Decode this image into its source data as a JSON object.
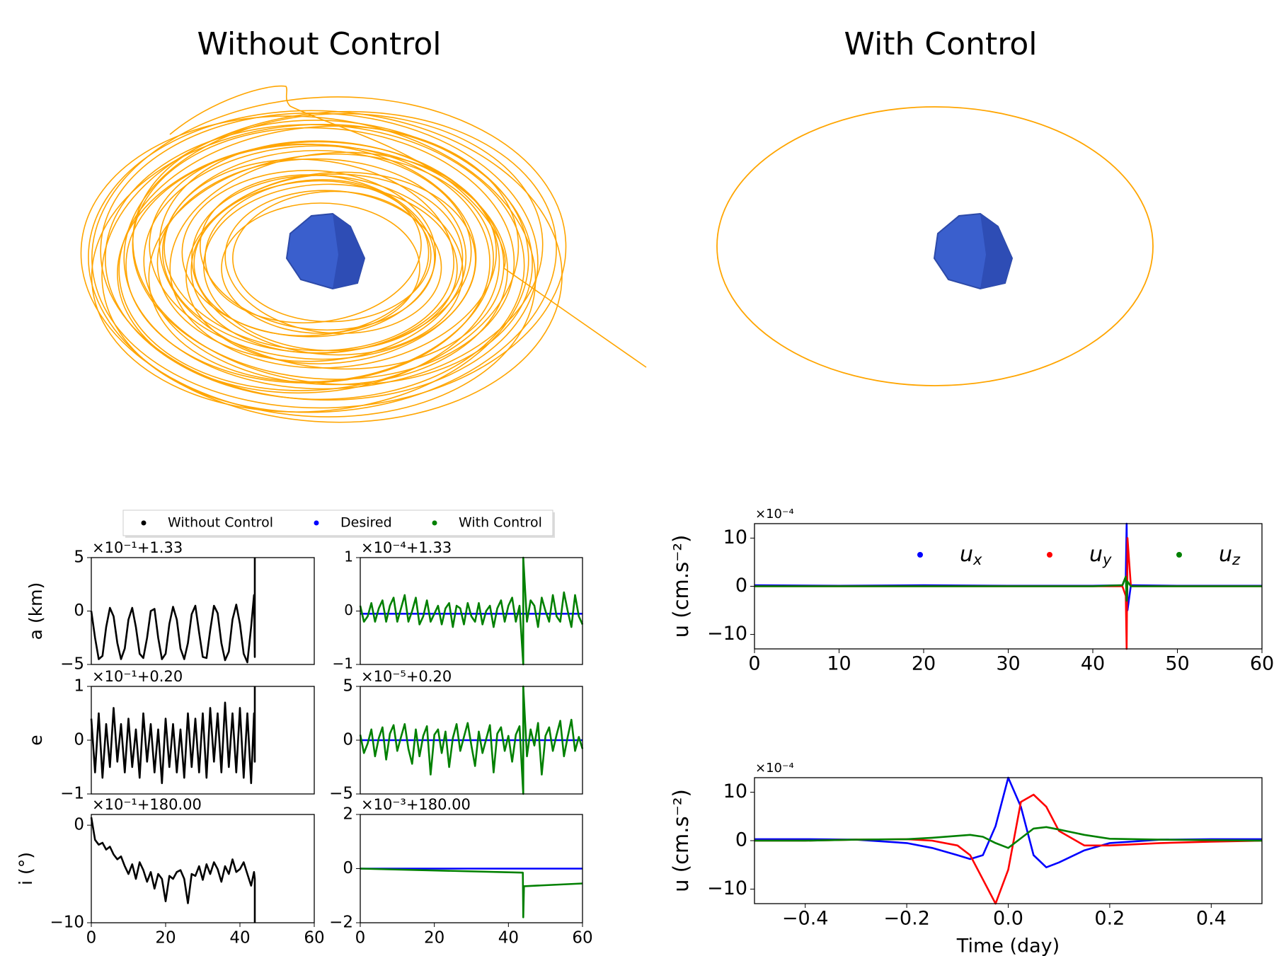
{
  "panels": [
    {
      "title": "Without Control"
    },
    {
      "title": "With Control"
    }
  ],
  "chart_data": [
    {
      "type": "line",
      "ylabel": "a (km)",
      "offset_label": "×10⁻¹+1.33",
      "xlim": [
        0,
        60
      ],
      "ylim": [
        -5,
        5
      ],
      "yticks": [
        {
          "value": -5,
          "label": "−5"
        },
        0,
        5
      ],
      "series": [
        {
          "name": "Without Control",
          "color": "#000000",
          "x": [
            0,
            1,
            2,
            3,
            4,
            5,
            6,
            7,
            8,
            9,
            10,
            11,
            12,
            13,
            14,
            15,
            16,
            17,
            18,
            19,
            20,
            21,
            22,
            23,
            24,
            25,
            26,
            27,
            28,
            29,
            30,
            31,
            32,
            33,
            34,
            35,
            36,
            37,
            38,
            39,
            40,
            41,
            42,
            43,
            43.8,
            44,
            44
          ],
          "values": [
            0,
            -2.5,
            -4.5,
            -4.2,
            -1.5,
            0.3,
            -0.5,
            -3,
            -4.5,
            -3.5,
            -0.8,
            0.3,
            -1.5,
            -4,
            -4.4,
            -2.5,
            0,
            0.2,
            -2.5,
            -4.5,
            -4,
            -1.2,
            0.4,
            -0.8,
            -3.5,
            -4.5,
            -3,
            -0.3,
            0.5,
            -2,
            -4.3,
            -4.4,
            -1.8,
            0.5,
            -0.2,
            -3,
            -4.6,
            -3.8,
            -0.8,
            0.6,
            -1.2,
            -4,
            -4.8,
            -1.5,
            1.5,
            -4.3,
            5
          ]
        }
      ]
    },
    {
      "type": "line",
      "offset_label": "×10⁻⁴+1.33",
      "xlim": [
        0,
        60
      ],
      "ylim": [
        -1,
        1
      ],
      "yticks": [
        {
          "value": -1,
          "label": "−1"
        },
        0,
        1
      ],
      "series": [
        {
          "name": "Desired",
          "color": "#0000ff",
          "x": [
            0,
            60
          ],
          "values": [
            -0.05,
            -0.05
          ]
        },
        {
          "name": "With Control",
          "color": "#008000",
          "x": [
            0,
            1,
            2,
            3,
            4,
            5,
            6,
            7,
            8,
            9,
            10,
            11,
            12,
            13,
            14,
            15,
            16,
            17,
            18,
            19,
            20,
            21,
            22,
            23,
            24,
            25,
            26,
            27,
            28,
            29,
            30,
            31,
            32,
            33,
            34,
            35,
            36,
            37,
            38,
            39,
            40,
            41,
            42,
            43,
            44,
            44,
            45,
            46,
            47,
            48,
            49,
            50,
            51,
            52,
            53,
            54,
            55,
            56,
            57,
            58,
            59,
            60
          ],
          "values": [
            0.1,
            -0.2,
            -0.1,
            0.15,
            -0.2,
            0.05,
            0.2,
            -0.2,
            0.1,
            0.25,
            -0.2,
            0.05,
            0.3,
            -0.2,
            0,
            0.25,
            -0.25,
            -0.1,
            0.2,
            -0.2,
            -0.05,
            0.1,
            -0.25,
            0.05,
            0.15,
            -0.3,
            0.1,
            0.05,
            -0.25,
            0.15,
            -0.1,
            -0.2,
            0.15,
            -0.25,
            0,
            0.1,
            -0.3,
            0.05,
            0.2,
            -0.2,
            0.1,
            0.25,
            -0.2,
            0.1,
            -1,
            1,
            -0.2,
            0.2,
            0.1,
            -0.3,
            0.25,
            0,
            -0.2,
            0.3,
            -0.1,
            -0.2,
            0.35,
            0,
            -0.3,
            0.3,
            -0.1,
            -0.25
          ]
        }
      ]
    },
    {
      "type": "line",
      "ylabel": "e",
      "offset_label": "×10⁻¹+0.20",
      "xlim": [
        0,
        60
      ],
      "ylim": [
        -1,
        1
      ],
      "yticks": [
        {
          "value": -1,
          "label": "−1"
        },
        0,
        1
      ],
      "series": [
        {
          "color": "#000000",
          "x": [
            0,
            1,
            2,
            3,
            4,
            5,
            6,
            7,
            8,
            9,
            10,
            11,
            12,
            13,
            14,
            15,
            16,
            17,
            18,
            19,
            20,
            21,
            22,
            23,
            24,
            25,
            26,
            27,
            28,
            29,
            30,
            31,
            32,
            33,
            34,
            35,
            36,
            37,
            38,
            39,
            40,
            41,
            42,
            43,
            43.8,
            44,
            44
          ],
          "values": [
            0.4,
            -0.6,
            0.5,
            -0.7,
            0.3,
            -0.5,
            0.6,
            -0.4,
            0.3,
            -0.6,
            0.4,
            -0.5,
            0.2,
            -0.7,
            0.5,
            -0.4,
            0.3,
            -0.6,
            0.2,
            -0.8,
            0.4,
            -0.5,
            0.3,
            -0.6,
            0.2,
            -0.7,
            0.5,
            -0.5,
            0.4,
            -0.6,
            0.5,
            -0.7,
            0.6,
            -0.4,
            0.5,
            -0.6,
            0.7,
            -0.5,
            0.5,
            -0.6,
            0.6,
            -0.7,
            0.5,
            -0.8,
            0.5,
            -0.4,
            1
          ]
        }
      ]
    },
    {
      "type": "line",
      "offset_label": "×10⁻⁵+0.20",
      "xlim": [
        0,
        60
      ],
      "ylim": [
        -5,
        5
      ],
      "yticks": [
        {
          "value": -5,
          "label": "−5"
        },
        0,
        5
      ],
      "series": [
        {
          "color": "#0000ff",
          "x": [
            0,
            60
          ],
          "values": [
            0,
            0
          ]
        },
        {
          "color": "#008000",
          "x": [
            0,
            1,
            2,
            3,
            4,
            5,
            6,
            7,
            8,
            9,
            10,
            11,
            12,
            13,
            14,
            15,
            16,
            17,
            18,
            19,
            20,
            21,
            22,
            23,
            24,
            25,
            26,
            27,
            28,
            29,
            30,
            31,
            32,
            33,
            34,
            35,
            36,
            37,
            38,
            39,
            40,
            41,
            42,
            43,
            44,
            44,
            45,
            46,
            47,
            48,
            49,
            50,
            51,
            52,
            53,
            54,
            55,
            56,
            57,
            58,
            59,
            60
          ],
          "values": [
            0.5,
            -1.2,
            -0.3,
            1,
            -1.5,
            0.2,
            1.2,
            -1.8,
            0.6,
            1.4,
            -1,
            0.3,
            1.5,
            -0.8,
            -2.2,
            1,
            -1.5,
            0.4,
            1.3,
            -3.2,
            0.5,
            1,
            -1.2,
            0.8,
            -2.5,
            0.2,
            1.5,
            -1,
            0.3,
            1.6,
            -0.5,
            -2.4,
            0.8,
            -1.2,
            0.1,
            1.4,
            -3,
            0.6,
            1.2,
            -1,
            0.4,
            -2,
            0.5,
            1.3,
            -5,
            5,
            -1.5,
            1,
            -0.5,
            1.6,
            -3.2,
            0.4,
            1.2,
            -1,
            0.5,
            1.8,
            -1.5,
            0.3,
            1.9,
            -1,
            0.3,
            -0.8
          ]
        }
      ]
    },
    {
      "type": "line",
      "ylabel": "i (°)",
      "offset_label": "×10⁻¹+180.00",
      "xlim": [
        0,
        60
      ],
      "ylim": [
        -10,
        1.1
      ],
      "yticks": [
        {
          "value": -10,
          "label": "−10"
        },
        0
      ],
      "xticks": [
        0,
        20,
        40,
        60
      ],
      "series": [
        {
          "color": "#000000",
          "x": [
            0,
            1,
            2,
            3,
            4,
            5,
            6,
            7,
            8,
            9,
            10,
            11,
            12,
            13,
            14,
            15,
            16,
            17,
            18,
            19,
            20,
            21,
            22,
            23,
            24,
            25,
            26,
            27,
            28,
            29,
            30,
            31,
            32,
            33,
            34,
            35,
            36,
            37,
            38,
            39,
            40,
            41,
            42,
            43,
            43.8,
            44,
            44
          ],
          "values": [
            0.8,
            -1.5,
            -2,
            -1.8,
            -2.5,
            -2.2,
            -3,
            -3.5,
            -3.2,
            -4.2,
            -5,
            -4,
            -5.5,
            -3.8,
            -4.6,
            -5.8,
            -4.8,
            -6.5,
            -5,
            -5.5,
            -7.8,
            -5.2,
            -5.5,
            -4.8,
            -4.6,
            -5.5,
            -8,
            -5,
            -5.2,
            -4.2,
            -5.6,
            -4,
            -5,
            -3.8,
            -4.5,
            -5.8,
            -4.2,
            -5,
            -3.5,
            -4.8,
            -4.5,
            -3.8,
            -5,
            -6.2,
            -4.8,
            -5.5,
            -10
          ]
        }
      ]
    },
    {
      "type": "line",
      "offset_label": "×10⁻³+180.00",
      "xlim": [
        0,
        60
      ],
      "ylim": [
        -2,
        2
      ],
      "yticks": [
        {
          "value": -2,
          "label": "−2"
        },
        0,
        2
      ],
      "xticks": [
        0,
        20,
        40,
        60
      ],
      "series": [
        {
          "color": "#0000ff",
          "x": [
            0,
            60
          ],
          "values": [
            0,
            0
          ]
        },
        {
          "color": "#008000",
          "x": [
            0,
            43.9,
            44,
            44.2,
            60
          ],
          "values": [
            0,
            -0.15,
            -1.8,
            -0.65,
            -0.55
          ]
        }
      ]
    },
    {
      "type": "line",
      "ylabel": "u (cm.s⁻²)",
      "offset_label": "×10⁻⁴",
      "xlim": [
        0,
        60
      ],
      "ylim": [
        -13,
        13
      ],
      "yticks": [
        {
          "value": -10,
          "label": "−10"
        },
        0,
        10
      ],
      "xticks": [
        0,
        10,
        20,
        30,
        40,
        50,
        60
      ],
      "series": [
        {
          "name": "u",
          "subscript": "x",
          "color": "#0000ff",
          "x": [
            0,
            10,
            20,
            30,
            40,
            43.5,
            43.9,
            44,
            44.1,
            44.5,
            50,
            60
          ],
          "values": [
            0.2,
            0.1,
            0.2,
            0.1,
            0.1,
            0.2,
            2,
            13,
            -5,
            0.2,
            0.1,
            0.1
          ]
        },
        {
          "name": "u",
          "subscript": "y",
          "color": "#ff0000",
          "x": [
            0,
            10,
            20,
            30,
            40,
            43.5,
            43.9,
            44,
            44.1,
            44.5,
            50,
            60
          ],
          "values": [
            0,
            0,
            0,
            0,
            0,
            0,
            -2,
            -13,
            10,
            0,
            0,
            0
          ]
        },
        {
          "name": "u",
          "subscript": "z",
          "color": "#008000",
          "x": [
            0,
            10,
            20,
            30,
            40,
            43.5,
            43.9,
            44,
            44.1,
            44.5,
            50,
            60
          ],
          "values": [
            0,
            0,
            0,
            0,
            0,
            0.2,
            2,
            -3,
            1,
            0,
            0,
            0
          ]
        }
      ]
    },
    {
      "type": "line",
      "ylabel": "u (cm.s⁻²)",
      "xlabel": "Time (day)",
      "offset_label": "×10⁻⁴",
      "xlim": [
        -0.5,
        0.5
      ],
      "ylim": [
        -13,
        13
      ],
      "yticks": [
        {
          "value": -10,
          "label": "−10"
        },
        0,
        10
      ],
      "xticks": [
        {
          "value": -0.4,
          "label": "−0.4"
        },
        {
          "value": -0.2,
          "label": "−0.2"
        },
        {
          "value": 0,
          "label": "0.0"
        },
        0.2,
        0.4
      ],
      "series": [
        {
          "color": "#0000ff",
          "x": [
            -0.5,
            -0.4,
            -0.3,
            -0.2,
            -0.15,
            -0.1,
            -0.075,
            -0.05,
            -0.025,
            0,
            0.025,
            0.05,
            0.075,
            0.1,
            0.15,
            0.2,
            0.3,
            0.4,
            0.5
          ],
          "values": [
            0.3,
            0.3,
            0.2,
            -0.5,
            -1.5,
            -3,
            -3.8,
            -3,
            3,
            13,
            7,
            -3,
            -5.5,
            -4.5,
            -2,
            -0.5,
            0.2,
            0.3,
            0.3
          ]
        },
        {
          "color": "#ff0000",
          "x": [
            -0.5,
            -0.4,
            -0.3,
            -0.2,
            -0.15,
            -0.1,
            -0.075,
            -0.05,
            -0.025,
            0,
            0.025,
            0.05,
            0.075,
            0.1,
            0.15,
            0.2,
            0.3,
            0.4,
            0.5
          ],
          "values": [
            0,
            0,
            0.2,
            0.3,
            0,
            -1,
            -3,
            -8,
            -13,
            -6,
            8,
            9.5,
            7,
            2,
            -1,
            -1,
            -0.5,
            -0.2,
            0
          ]
        },
        {
          "color": "#008000",
          "x": [
            -0.5,
            -0.4,
            -0.3,
            -0.2,
            -0.15,
            -0.1,
            -0.075,
            -0.05,
            -0.025,
            0,
            0.025,
            0.05,
            0.075,
            0.1,
            0.15,
            0.2,
            0.3,
            0.4,
            0.5
          ],
          "values": [
            0,
            0,
            0.2,
            0.3,
            0.6,
            1,
            1.2,
            0.8,
            -0.5,
            -1.5,
            0.5,
            2.5,
            2.8,
            2.3,
            1.2,
            0.4,
            0.2,
            0.1,
            0
          ]
        }
      ]
    }
  ]
}
